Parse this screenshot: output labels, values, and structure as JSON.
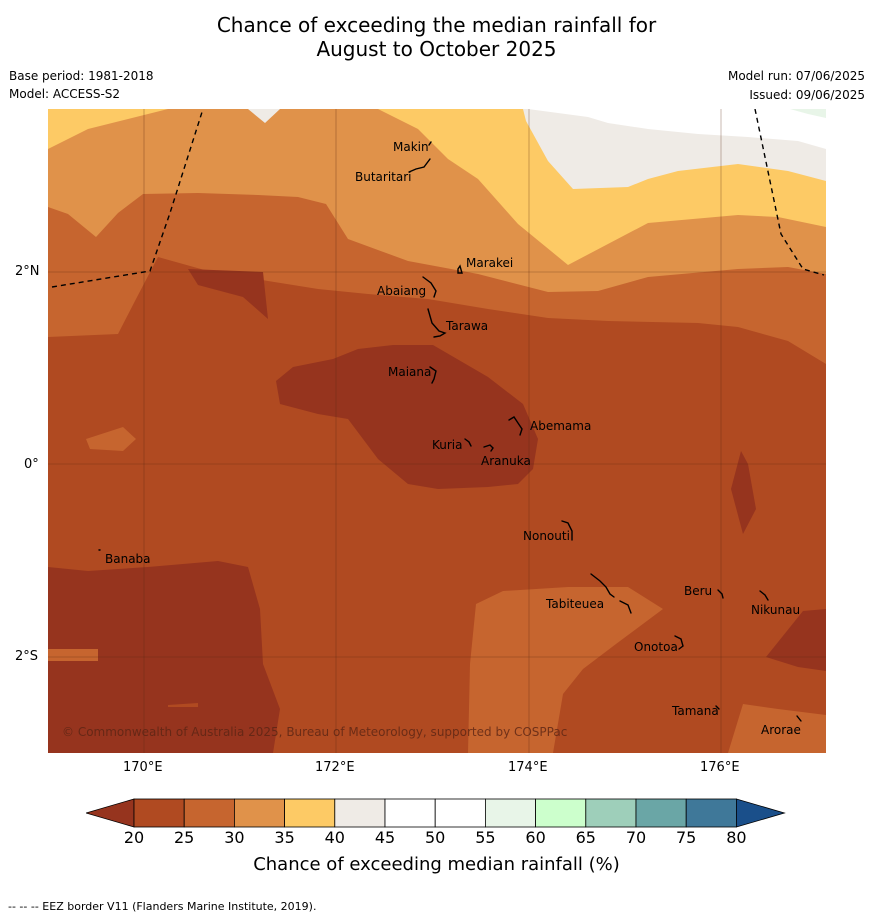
{
  "title": {
    "line1": "Chance of exceeding the median rainfall for",
    "line2": "August to October 2025"
  },
  "meta": {
    "base_period": "Base period: 1981-2018",
    "model": "Model: ACCESS-S2",
    "model_run": "Model run: 07/06/2025",
    "issued": "Issued: 09/06/2025"
  },
  "map": {
    "lat_labels": [
      "2°N",
      "0°",
      "2°S"
    ],
    "lon_labels": [
      "170°E",
      "172°E",
      "174°E",
      "176°E"
    ],
    "places": [
      "Makin",
      "Butaritari",
      "Marakei",
      "Abaiang",
      "Tarawa",
      "Maiana",
      "Abemama",
      "Kuria",
      "Aranuka",
      "Nonouti",
      "Banaba",
      "Beru",
      "Nikunau",
      "Tabiteuea",
      "Onotoa",
      "Tamana",
      "Arorae"
    ],
    "copyright": "© Commonwealth of Australia 2025, Bureau of Meteorology, supported by COSPPac",
    "colors": {
      "c20_25": "#b04a21",
      "c_below20": "#96341e",
      "c25_30": "#c6652f",
      "c30_35": "#e0924a",
      "c35_40": "#fdca65",
      "c40_45": "#efebe6",
      "c45_55": "#ffffff",
      "c55_60": "#e8f5e8"
    }
  },
  "colorbar": {
    "ticks": [
      "20",
      "25",
      "30",
      "35",
      "40",
      "45",
      "50",
      "55",
      "60",
      "65",
      "70",
      "75",
      "80"
    ],
    "colors": [
      "#96341e",
      "#b04a21",
      "#c6652f",
      "#e0924a",
      "#fdca65",
      "#efebe6",
      "#ffffff",
      "#ffffff",
      "#e8f5e8",
      "#ccffcc",
      "#9ecfba",
      "#6aa6a6",
      "#3f7899",
      "#1a4f8a"
    ],
    "title": "Chance of exceeding median rainfall (%)"
  },
  "footer": "--  --  -- EEZ border V11 (Flanders Marine Institute, 2019)."
}
